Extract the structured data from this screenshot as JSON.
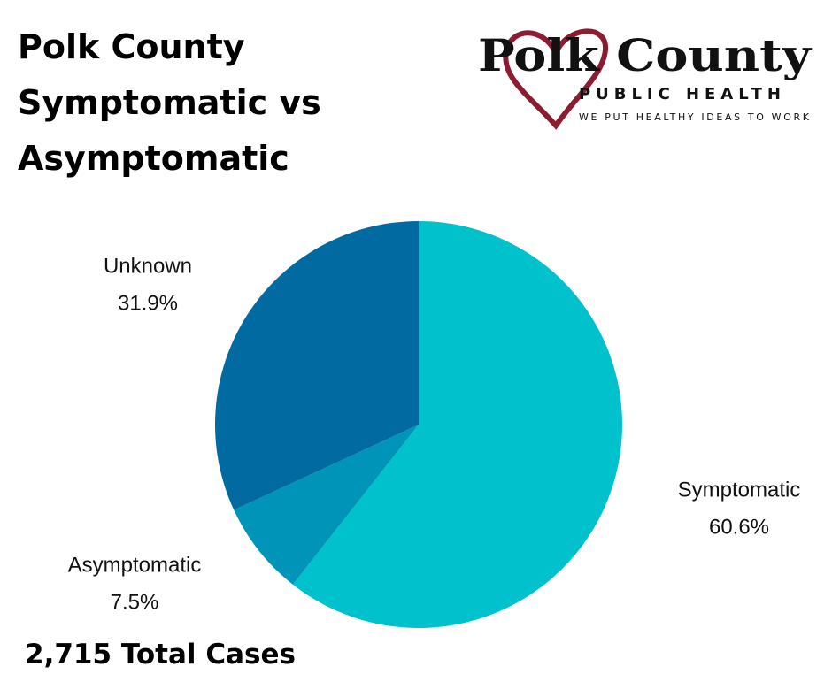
{
  "chart_data": {
    "type": "pie",
    "title": "Polk County Symptomatic vs Asymptomatic",
    "categories": [
      "Symptomatic",
      "Asymptomatic",
      "Unknown"
    ],
    "values": [
      60.6,
      7.5,
      31.9
    ],
    "value_labels": [
      "60.6%",
      "7.5%",
      "31.9%"
    ],
    "colors": [
      "#00c1cc",
      "#0094b8",
      "#006aa1"
    ],
    "annotation": "2,715 Total Cases"
  },
  "logo": {
    "name": "Polk County",
    "subtitle": "PUBLIC HEALTH",
    "tagline": "WE PUT HEALTHY IDEAS TO WORK"
  }
}
